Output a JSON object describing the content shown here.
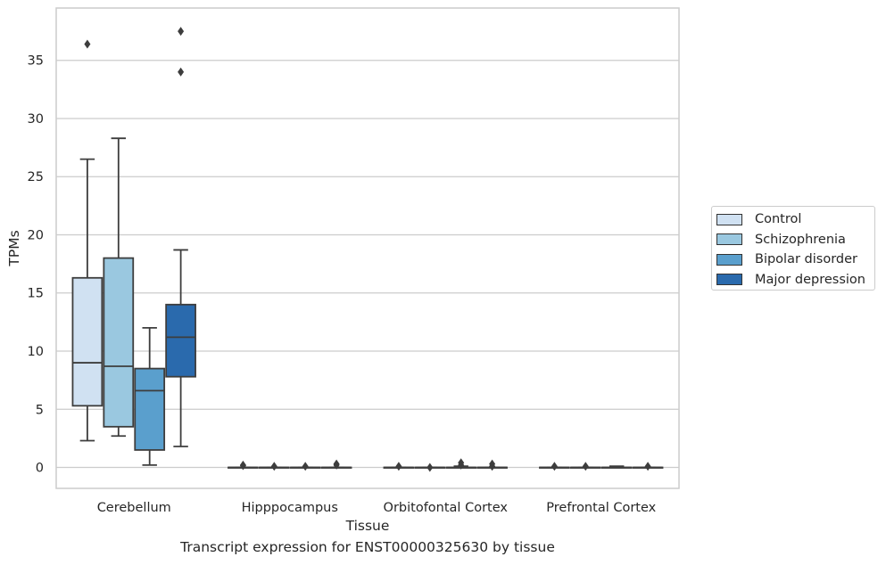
{
  "chart_data": {
    "type": "box",
    "xlabel": "Tissue",
    "ylabel": "TPMs",
    "ylim": [
      -1.8,
      39.5
    ],
    "yticks": [
      0,
      5,
      10,
      15,
      20,
      25,
      30,
      35
    ],
    "grid": true,
    "legend_position": "right",
    "categories": [
      "Cerebellum",
      "Hipppocampus",
      "Orbitofontal Cortex",
      "Prefrontal Cortex"
    ],
    "series": [
      {
        "name": "Control",
        "color": "#d0e1f2",
        "boxes": [
          {
            "whisker_low": 2.3,
            "q1": 5.3,
            "median": 9.0,
            "q3": 16.3,
            "whisker_high": 26.5,
            "outliers": [
              36.4
            ]
          },
          {
            "whisker_low": 0,
            "q1": 0,
            "median": 0,
            "q3": 0,
            "whisker_high": 0,
            "outliers": [
              0.15,
              0.2
            ]
          },
          {
            "whisker_low": 0,
            "q1": 0,
            "median": 0,
            "q3": 0,
            "whisker_high": 0,
            "outliers": [
              0.1
            ]
          },
          {
            "whisker_low": 0,
            "q1": 0,
            "median": 0,
            "q3": 0,
            "whisker_high": 0,
            "outliers": [
              0.1
            ]
          }
        ]
      },
      {
        "name": "Schizophrenia",
        "color": "#9ac8e0",
        "boxes": [
          {
            "whisker_low": 2.7,
            "q1": 3.5,
            "median": 8.7,
            "q3": 18.0,
            "whisker_high": 28.3,
            "outliers": []
          },
          {
            "whisker_low": 0,
            "q1": 0,
            "median": 0,
            "q3": 0,
            "whisker_high": 0,
            "outliers": [
              0.1
            ]
          },
          {
            "whisker_low": 0,
            "q1": 0,
            "median": 0,
            "q3": 0,
            "whisker_high": 0,
            "outliers": [
              0.0
            ]
          },
          {
            "whisker_low": 0,
            "q1": 0,
            "median": 0,
            "q3": 0,
            "whisker_high": 0,
            "outliers": [
              0.1
            ]
          }
        ]
      },
      {
        "name": "Bipolar disorder",
        "color": "#5a9fcd",
        "boxes": [
          {
            "whisker_low": 0.2,
            "q1": 1.5,
            "median": 6.6,
            "q3": 8.5,
            "whisker_high": 12.0,
            "outliers": []
          },
          {
            "whisker_low": 0,
            "q1": 0,
            "median": 0,
            "q3": 0,
            "whisker_high": 0,
            "outliers": [
              0.1
            ]
          },
          {
            "whisker_low": 0,
            "q1": 0,
            "median": 0,
            "q3": 0,
            "whisker_high": 0.1,
            "outliers": [
              0.2,
              0.4
            ]
          },
          {
            "whisker_low": 0,
            "q1": 0,
            "median": 0,
            "q3": 0,
            "whisker_high": 0.1,
            "outliers": []
          }
        ]
      },
      {
        "name": "Major depression",
        "color": "#2a6aad",
        "boxes": [
          {
            "whisker_low": 1.8,
            "q1": 7.8,
            "median": 11.2,
            "q3": 14.0,
            "whisker_high": 18.7,
            "outliers": [
              34.0,
              37.5
            ]
          },
          {
            "whisker_low": 0,
            "q1": 0,
            "median": 0,
            "q3": 0,
            "whisker_high": 0,
            "outliers": [
              0.2,
              0.3
            ]
          },
          {
            "whisker_low": 0,
            "q1": 0,
            "median": 0,
            "q3": 0,
            "whisker_high": 0,
            "outliers": [
              0.1,
              0.3
            ]
          },
          {
            "whisker_low": 0,
            "q1": 0,
            "median": 0,
            "q3": 0,
            "whisker_high": 0,
            "outliers": [
              0.1
            ]
          }
        ]
      }
    ]
  },
  "caption": "Transcript expression for ENST00000325630 by tissue"
}
